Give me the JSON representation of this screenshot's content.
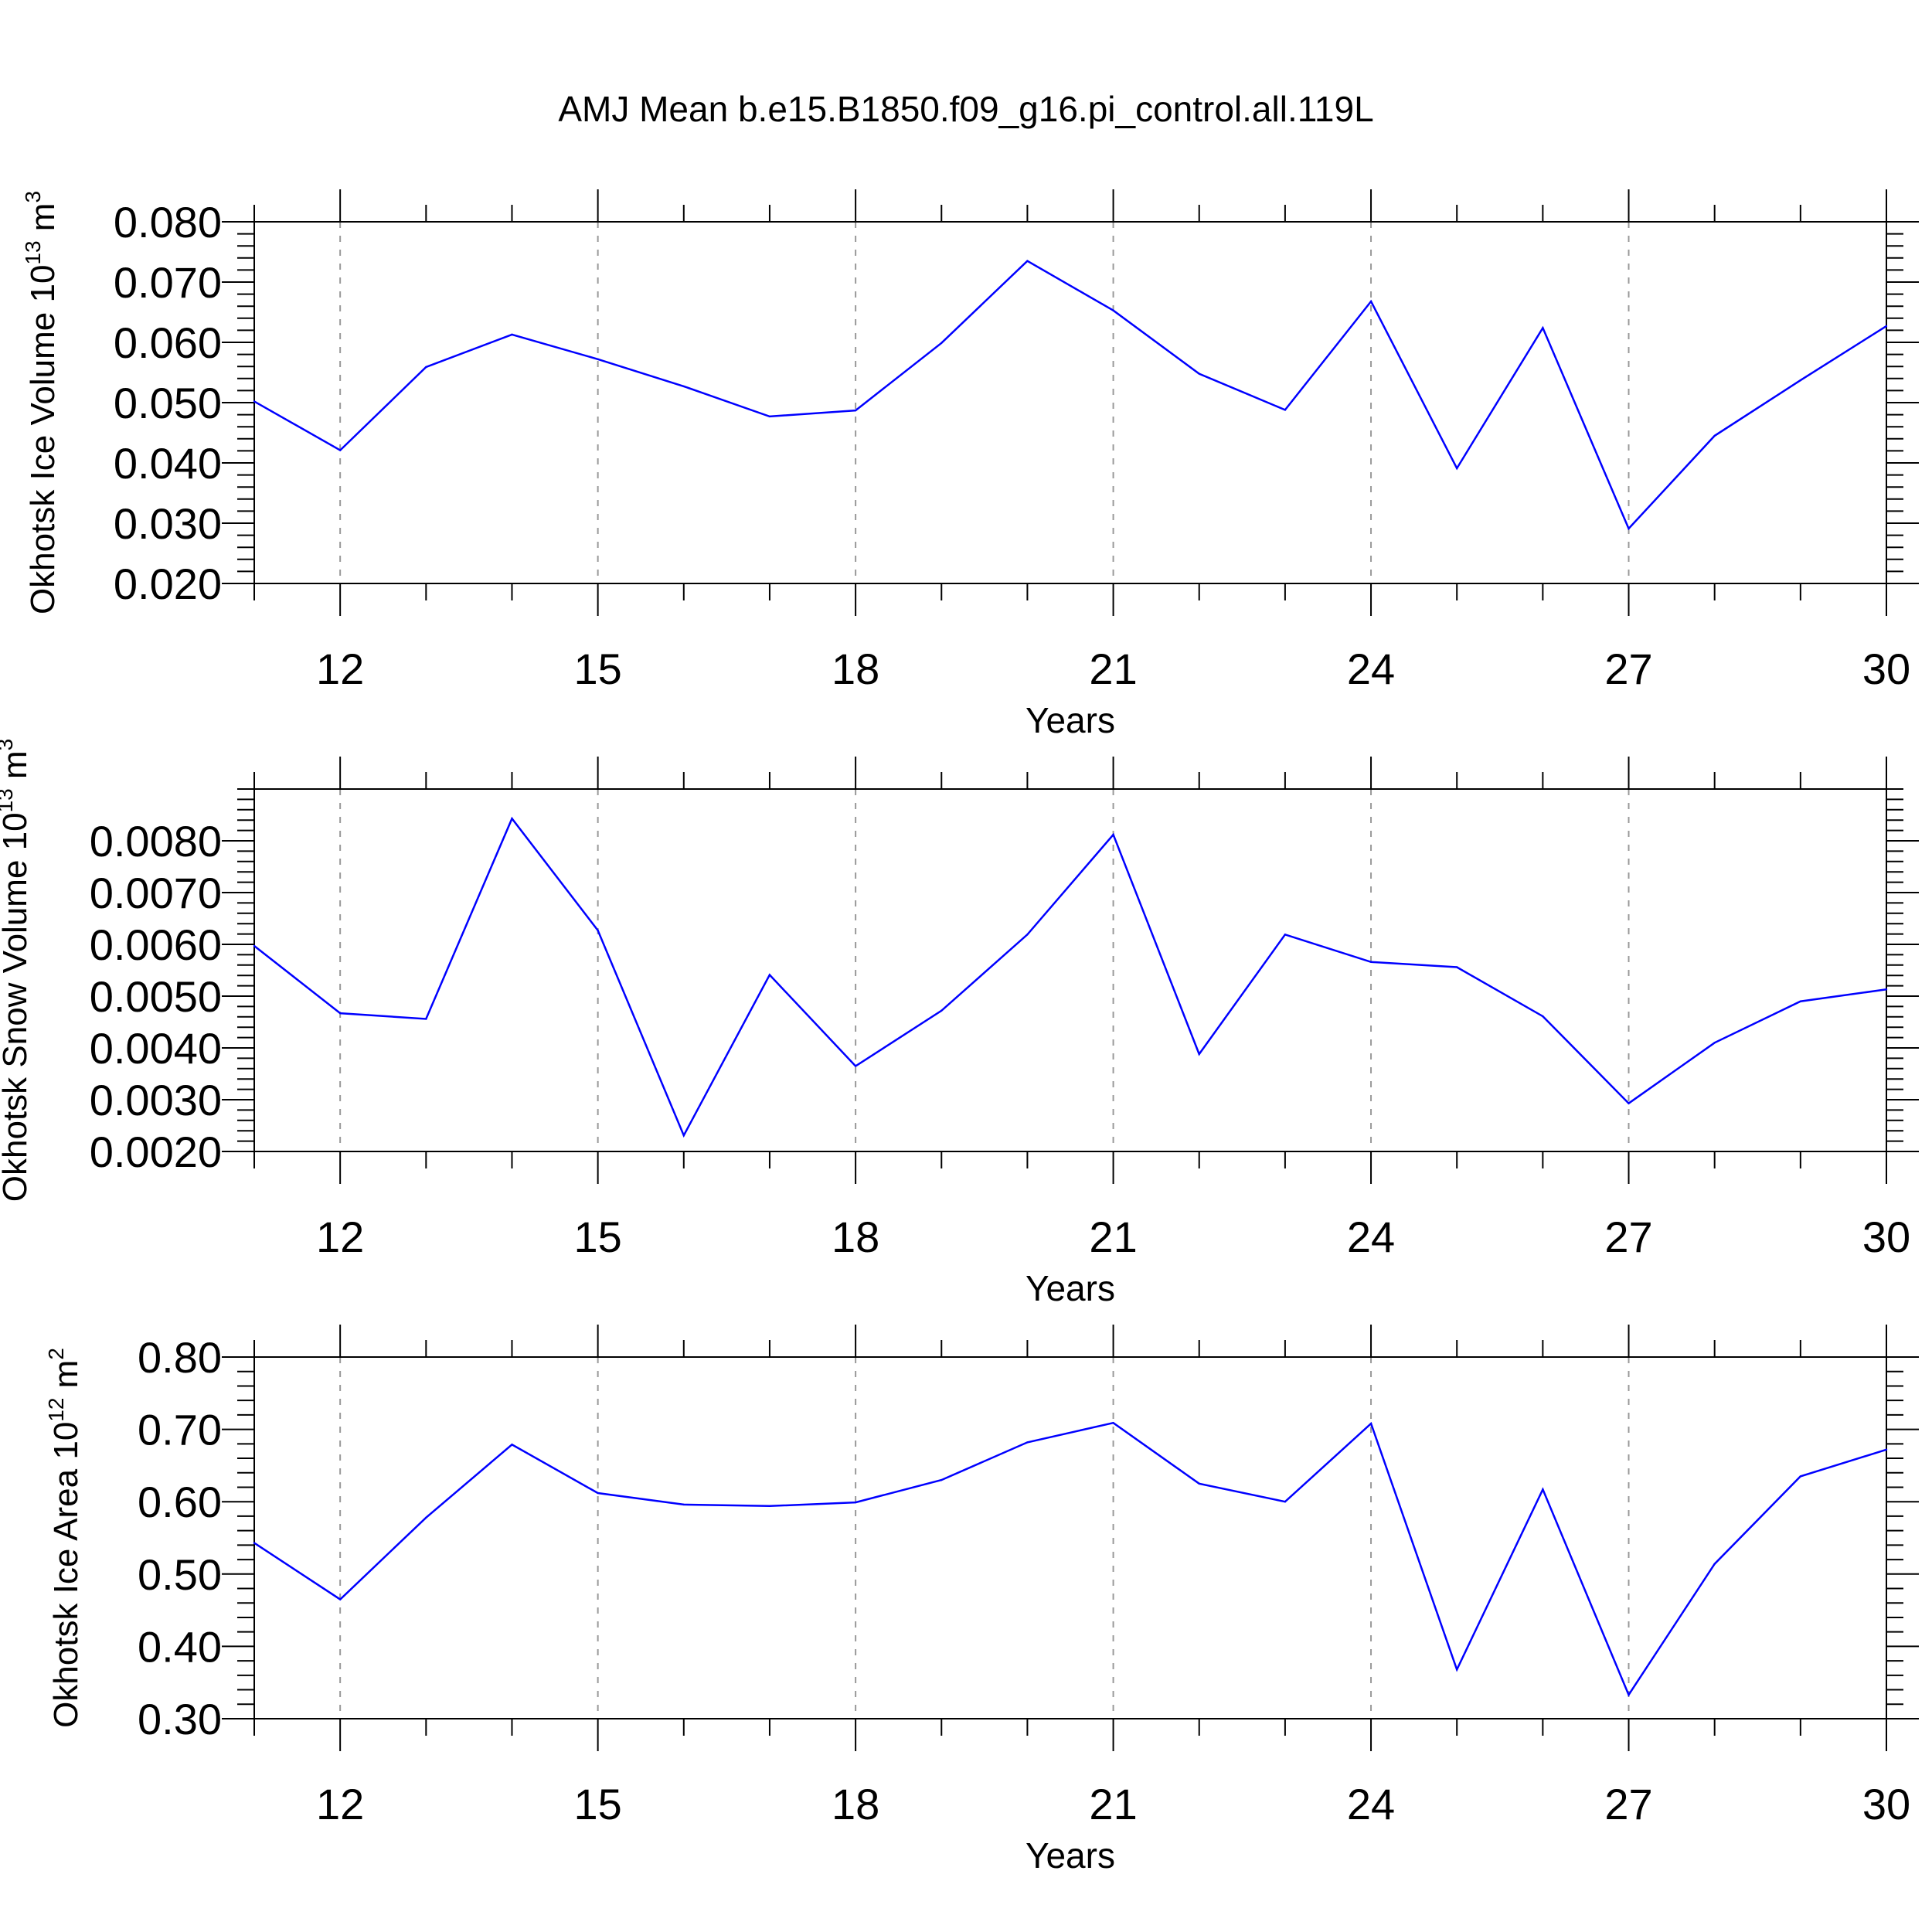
{
  "title": "AMJ Mean b.e15.B1850.f09_g16.pi_control.all.119L",
  "chart_data": [
    {
      "type": "line",
      "ylabel": "Okhotsk Ice Volume 10",
      "ylabel_exp": "13",
      "ylabel_unit": "m",
      "ylabel_unit_exp": "3",
      "xlabel": "Years",
      "xlim": [
        11,
        30
      ],
      "ylim": [
        0.02,
        0.08
      ],
      "yticks": [
        0.02,
        0.03,
        0.04,
        0.05,
        0.06,
        0.07,
        0.08
      ],
      "ytick_labels": [
        "0.020",
        "0.030",
        "0.040",
        "0.050",
        "0.060",
        "0.070",
        "0.080"
      ],
      "xticks": [
        12,
        15,
        18,
        21,
        24,
        27,
        30
      ],
      "xtick_labels": [
        "12",
        "15",
        "18",
        "21",
        "24",
        "27",
        "30"
      ],
      "grid": "dashed vertical at major x ticks",
      "color": "#0000ff",
      "x": [
        11,
        12,
        13,
        14,
        15,
        16,
        17,
        18,
        19,
        20,
        21,
        22,
        23,
        24,
        25,
        26,
        27,
        28,
        29,
        30
      ],
      "y": [
        0.0502,
        0.0421,
        0.0559,
        0.0613,
        0.0572,
        0.0527,
        0.0477,
        0.0487,
        0.0599,
        0.0735,
        0.0653,
        0.0548,
        0.0488,
        0.0668,
        0.0391,
        0.0624,
        0.0291,
        0.0445,
        0.0537,
        0.0627
      ]
    },
    {
      "type": "line",
      "ylabel": "Okhotsk Snow Volume 10",
      "ylabel_exp": "13",
      "ylabel_unit": "m",
      "ylabel_unit_exp": "3",
      "xlabel": "Years",
      "xlim": [
        11,
        30
      ],
      "ylim": [
        0.002,
        0.009
      ],
      "yticks": [
        0.002,
        0.003,
        0.004,
        0.005,
        0.006,
        0.007,
        0.008
      ],
      "ytick_labels": [
        "0.0020",
        "0.0030",
        "0.0040",
        "0.0050",
        "0.0060",
        "0.0070",
        "0.0080"
      ],
      "xticks": [
        12,
        15,
        18,
        21,
        24,
        27,
        30
      ],
      "xtick_labels": [
        "12",
        "15",
        "18",
        "21",
        "24",
        "27",
        "30"
      ],
      "grid": "dashed vertical at major x ticks",
      "color": "#0000ff",
      "x": [
        11,
        12,
        13,
        14,
        15,
        16,
        17,
        18,
        19,
        20,
        21,
        22,
        23,
        24,
        25,
        26,
        27,
        28,
        29,
        30
      ],
      "y": [
        0.00597,
        0.00467,
        0.00456,
        0.00843,
        0.00627,
        0.00231,
        0.00541,
        0.00365,
        0.00472,
        0.00619,
        0.00812,
        0.00388,
        0.00619,
        0.00566,
        0.00556,
        0.00461,
        0.00293,
        0.0041,
        0.0049,
        0.00513
      ]
    },
    {
      "type": "line",
      "ylabel": "Okhotsk Ice Area 10",
      "ylabel_exp": "12",
      "ylabel_unit": "m",
      "ylabel_unit_exp": "2",
      "xlabel": "Years",
      "xlim": [
        11,
        30
      ],
      "ylim": [
        0.3,
        0.8
      ],
      "yticks": [
        0.3,
        0.4,
        0.5,
        0.6,
        0.7,
        0.8
      ],
      "ytick_labels": [
        "0.30",
        "0.40",
        "0.50",
        "0.60",
        "0.70",
        "0.80"
      ],
      "xticks": [
        12,
        15,
        18,
        21,
        24,
        27,
        30
      ],
      "xtick_labels": [
        "12",
        "15",
        "18",
        "21",
        "24",
        "27",
        "30"
      ],
      "grid": "dashed vertical at major x ticks",
      "color": "#0000ff",
      "x": [
        11,
        12,
        13,
        14,
        15,
        16,
        17,
        18,
        19,
        20,
        21,
        22,
        23,
        24,
        25,
        26,
        27,
        28,
        29,
        30
      ],
      "y": [
        0.543,
        0.465,
        0.578,
        0.679,
        0.612,
        0.596,
        0.594,
        0.599,
        0.63,
        0.682,
        0.709,
        0.625,
        0.6,
        0.708,
        0.368,
        0.617,
        0.333,
        0.514,
        0.635,
        0.672
      ]
    }
  ]
}
